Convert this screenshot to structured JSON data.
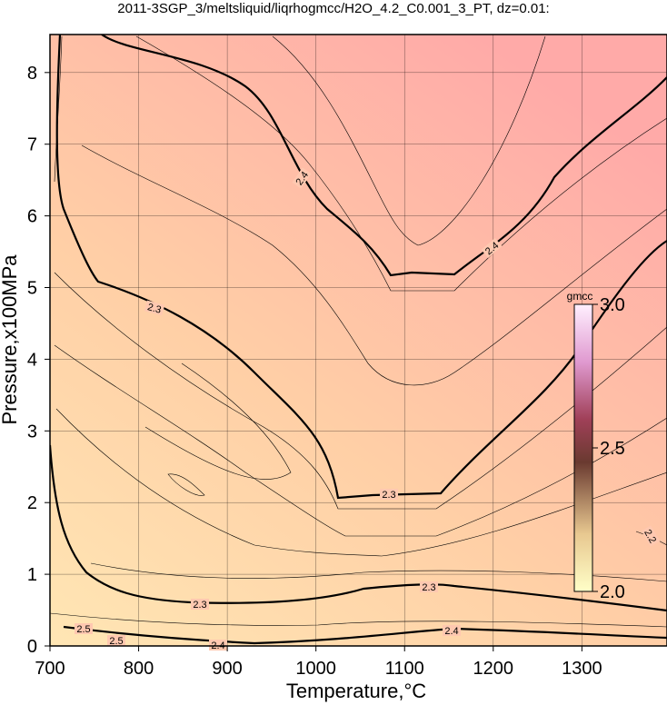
{
  "chart_data": {
    "type": "contour",
    "title": "2011-3SGP_3/meltsliquid/liqrhogmcc/H2O_4.2_C0.001_3_PT, dz=0.01:",
    "x_label": "Temperature,°C",
    "y_label": "Pressure,x100MPa",
    "xlim": [
      700,
      1396
    ],
    "xticks": [
      700,
      800,
      900,
      1000,
      1100,
      1200,
      1300
    ],
    "ylim": [
      0,
      8.53
    ],
    "yticks": [
      0,
      1,
      2,
      3,
      4,
      5,
      6,
      7,
      8
    ],
    "grid": true,
    "colorbar": {
      "label": "gmcc",
      "lim": [
        2.0,
        3.0
      ],
      "ticks": [
        {
          "value": 2.0,
          "label": "2.0"
        },
        {
          "value": 2.5,
          "label": "2.5"
        },
        {
          "value": 3.0,
          "label": "3.0"
        }
      ]
    },
    "contour_labels": [
      2.4,
      2.4,
      2.3,
      2.3,
      2.3,
      2.3,
      2.4,
      2.4,
      2.5,
      2.5,
      2.2
    ]
  }
}
